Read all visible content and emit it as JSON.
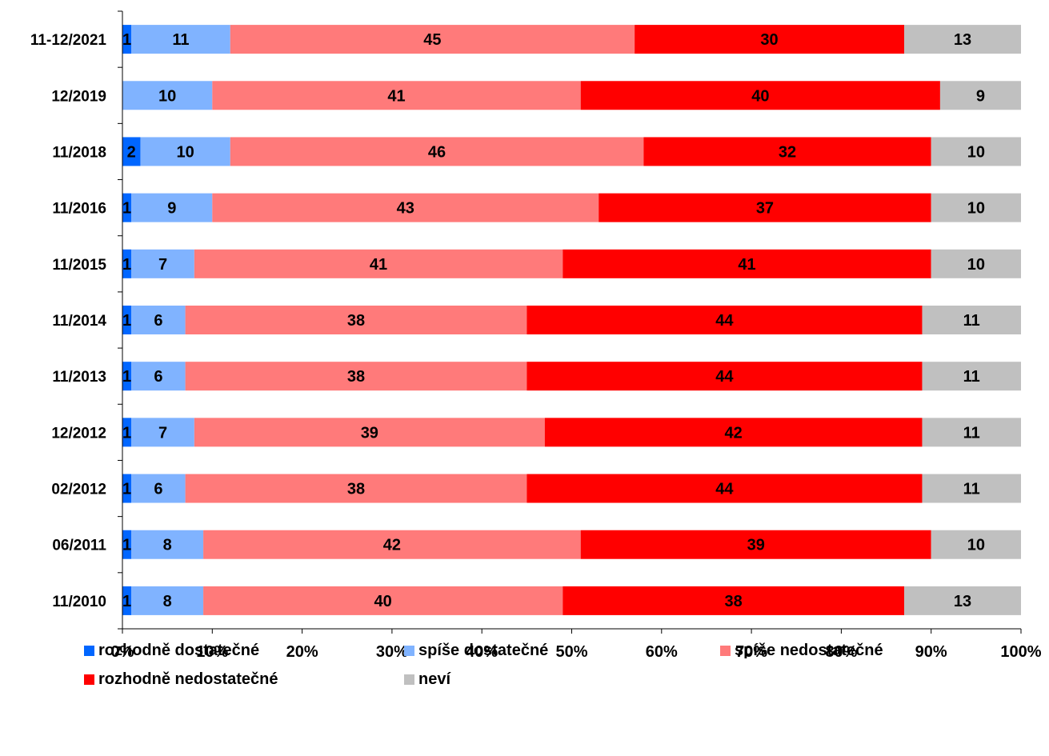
{
  "chart_data": {
    "type": "bar",
    "orientation": "horizontal",
    "stacked": true,
    "percent_stacked": true,
    "categories": [
      "11-12/2021",
      "12/2019",
      "11/2018",
      "11/2016",
      "11/2015",
      "11/2014",
      "11/2013",
      "12/2012",
      "02/2012",
      "06/2011",
      "11/2010"
    ],
    "series": [
      {
        "name": "rozhodně dostatečné",
        "color": "#0066ff",
        "values": [
          1,
          0,
          2,
          1,
          1,
          1,
          1,
          1,
          1,
          1,
          1
        ]
      },
      {
        "name": "spíše dostatečné",
        "color": "#80b3ff",
        "values": [
          11,
          10,
          10,
          9,
          7,
          6,
          6,
          7,
          6,
          8,
          8
        ]
      },
      {
        "name": "spíše nedostatečné",
        "color": "#ff7a7a",
        "values": [
          45,
          41,
          46,
          43,
          41,
          38,
          38,
          39,
          38,
          42,
          40
        ]
      },
      {
        "name": "rozhodně nedostatečné",
        "color": "#ff0000",
        "values": [
          30,
          40,
          32,
          37,
          41,
          44,
          44,
          42,
          44,
          39,
          38
        ]
      },
      {
        "name": "neví",
        "color": "#c0c0c0",
        "values": [
          13,
          9,
          10,
          10,
          10,
          11,
          11,
          11,
          11,
          10,
          13
        ]
      }
    ],
    "x_ticks": [
      "0%",
      "10%",
      "20%",
      "30%",
      "40%",
      "50%",
      "60%",
      "70%",
      "80%",
      "90%",
      "100%"
    ],
    "xlim": [
      0,
      100
    ],
    "data_labels": true,
    "grid": false,
    "legend_position": "bottom"
  }
}
